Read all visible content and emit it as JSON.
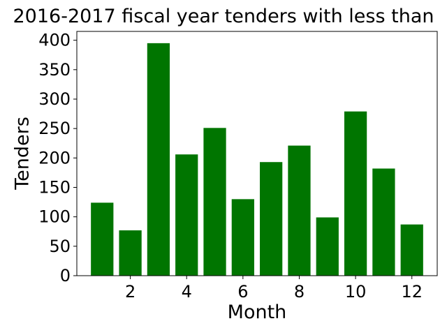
{
  "chart_data": {
    "type": "bar",
    "title": "2016-2017 fiscal year tenders with less than",
    "xlabel": "Month",
    "ylabel": "Tenders",
    "x": [
      1,
      2,
      3,
      4,
      5,
      6,
      7,
      8,
      9,
      10,
      11,
      12
    ],
    "values": [
      124,
      77,
      395,
      206,
      251,
      130,
      193,
      221,
      99,
      279,
      182,
      87
    ],
    "xlim": [
      0.1,
      12.9
    ],
    "ylim": [
      0,
      415
    ],
    "xticks": [
      2,
      4,
      6,
      8,
      10,
      12
    ],
    "yticks": [
      0,
      50,
      100,
      150,
      200,
      250,
      300,
      350,
      400
    ],
    "bar_color": "#007500",
    "grid": false,
    "legend": "none"
  }
}
